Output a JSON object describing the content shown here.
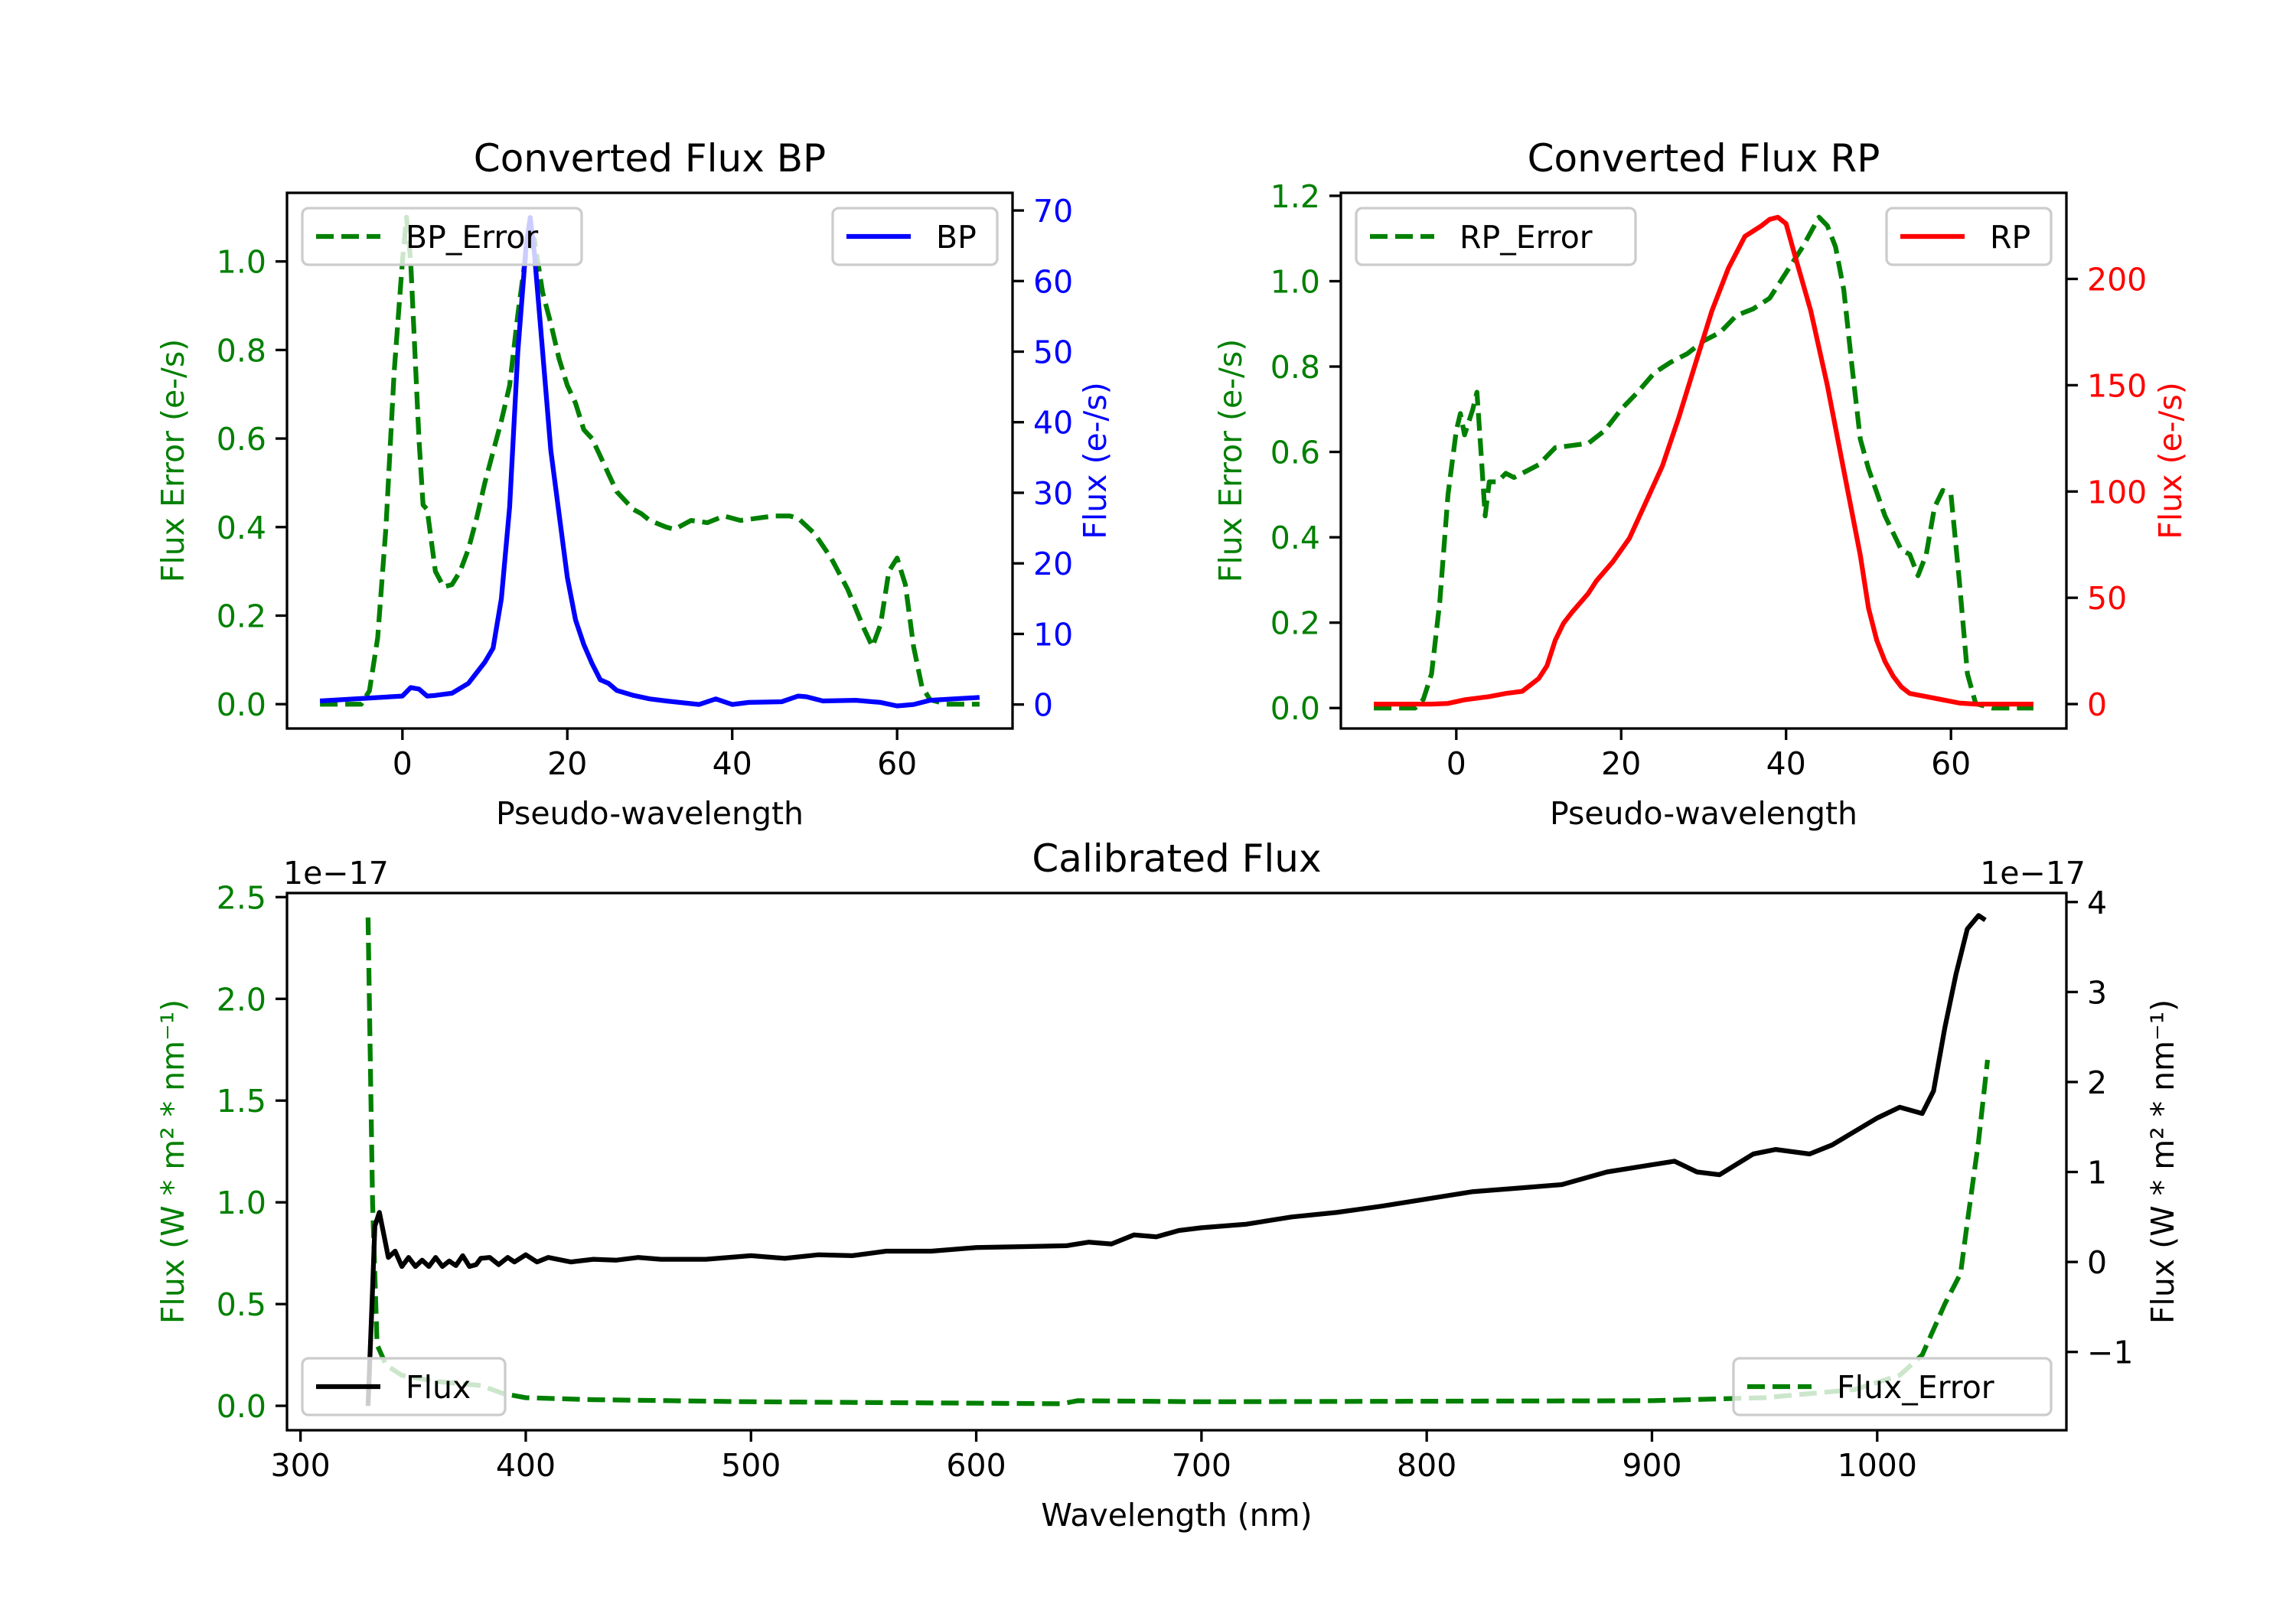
{
  "chart_data": [
    {
      "type": "line",
      "title": "Converted Flux BP",
      "xlabel": "Pseudo-wavelength",
      "ylabel_left": "Flux Error (e-/s)",
      "ylabel_right": "Flux (e-/s)",
      "xlim": [
        -14,
        74
      ],
      "ylim_left": [
        -0.055,
        1.155
      ],
      "ylim_right": [
        -3.4,
        72.5
      ],
      "xticks": [
        0,
        20,
        40,
        60
      ],
      "xtick_labels": [
        "0",
        "20",
        "40",
        "60"
      ],
      "yticks_left": [
        0.0,
        0.2,
        0.4,
        0.6,
        0.8,
        1.0
      ],
      "ytick_labels_left": [
        "0.0",
        "0.2",
        "0.4",
        "0.6",
        "0.8",
        "1.0"
      ],
      "yticks_right": [
        0,
        10,
        20,
        30,
        40,
        50,
        60,
        70
      ],
      "ytick_labels_right": [
        "0",
        "10",
        "20",
        "30",
        "40",
        "50",
        "60",
        "70"
      ],
      "left_color": "#008000",
      "right_color": "#0000ff",
      "legend_left": {
        "label": "BP_Error",
        "placement": "upper left"
      },
      "legend_right": {
        "label": "BP",
        "placement": "upper right"
      },
      "series": [
        {
          "name": "BP_Error",
          "axis": "left",
          "style": "dashed",
          "color": "#008000",
          "x": [
            -10,
            -5,
            -4,
            -3,
            -2,
            -1,
            0,
            0.5,
            1,
            1.5,
            2,
            2.5,
            3,
            4,
            5,
            6,
            7,
            8,
            9,
            10,
            11,
            12,
            13,
            14,
            15,
            16,
            17,
            18,
            19,
            20,
            21,
            22,
            23,
            24,
            25,
            26,
            27,
            28,
            29,
            30,
            32,
            33,
            35,
            37,
            39,
            41,
            43,
            45,
            47,
            48,
            50,
            52,
            54,
            56,
            57,
            58,
            59,
            60,
            61,
            62,
            63,
            64,
            66,
            70
          ],
          "y": [
            0,
            0,
            0.03,
            0.15,
            0.4,
            0.75,
            1.0,
            1.1,
            1.0,
            0.8,
            0.6,
            0.45,
            0.44,
            0.3,
            0.265,
            0.27,
            0.3,
            0.35,
            0.42,
            0.5,
            0.57,
            0.64,
            0.72,
            0.88,
            1.02,
            1.05,
            0.93,
            0.86,
            0.78,
            0.72,
            0.68,
            0.62,
            0.6,
            0.56,
            0.52,
            0.48,
            0.46,
            0.44,
            0.43,
            0.415,
            0.4,
            0.395,
            0.415,
            0.41,
            0.425,
            0.415,
            0.42,
            0.425,
            0.425,
            0.42,
            0.385,
            0.33,
            0.26,
            0.17,
            0.13,
            0.18,
            0.3,
            0.33,
            0.27,
            0.13,
            0.04,
            0.01,
            0,
            0
          ]
        },
        {
          "name": "BP",
          "axis": "right",
          "style": "solid",
          "color": "#0000ff",
          "x": [
            -10,
            0,
            1,
            2,
            3,
            4,
            6,
            8,
            10,
            11,
            12,
            13,
            14,
            15,
            15.5,
            16,
            17,
            18,
            19,
            20,
            21,
            22,
            23,
            24,
            25,
            26,
            28,
            30,
            32,
            36,
            38,
            40,
            42,
            46,
            47,
            48,
            49,
            51,
            55,
            58,
            60,
            62,
            64,
            70
          ],
          "y": [
            0.5,
            1.2,
            2.4,
            2.2,
            1.2,
            1.3,
            1.6,
            3,
            6,
            8,
            15,
            28,
            50,
            65,
            69,
            64,
            50,
            36,
            27,
            18,
            12,
            8.5,
            5.8,
            3.5,
            3,
            2,
            1.3,
            0.8,
            0.5,
            0,
            0.8,
            0,
            0.3,
            0.4,
            0.8,
            1.2,
            1.1,
            0.5,
            0.6,
            0.3,
            -0.2,
            0,
            0.6,
            1
          ]
        }
      ]
    },
    {
      "type": "line",
      "title": "Converted Flux RP",
      "xlabel": "Pseudo-wavelength",
      "ylabel_left": "Flux Error (e-/s)",
      "ylabel_right": "Flux (e-/s)",
      "xlim": [
        -14,
        74
      ],
      "ylim_left": [
        -0.048,
        1.207
      ],
      "ylim_right": [
        -11.5,
        240.5
      ],
      "xticks": [
        0,
        20,
        40,
        60
      ],
      "xtick_labels": [
        "0",
        "20",
        "40",
        "60"
      ],
      "yticks_left": [
        0.0,
        0.2,
        0.4,
        0.6,
        0.8,
        1.0,
        1.2
      ],
      "ytick_labels_left": [
        "0.0",
        "0.2",
        "0.4",
        "0.6",
        "0.8",
        "1.0",
        "1.2"
      ],
      "yticks_right": [
        0,
        50,
        100,
        150,
        200
      ],
      "ytick_labels_right": [
        "0",
        "50",
        "100",
        "150",
        "200"
      ],
      "left_color": "#008000",
      "right_color": "#ff0000",
      "legend_left": {
        "label": "RP_Error",
        "placement": "upper left"
      },
      "legend_right": {
        "label": "RP",
        "placement": "upper right"
      },
      "series": [
        {
          "name": "RP_Error",
          "axis": "left",
          "style": "dashed",
          "color": "#008000",
          "x": [
            -10,
            -5,
            -4,
            -3,
            -2,
            -1,
            0,
            0.5,
            1,
            2,
            2.5,
            3,
            3.5,
            4,
            5,
            6,
            7,
            8,
            10,
            12,
            14,
            16,
            18,
            20,
            22,
            24,
            26,
            28,
            30,
            32,
            34,
            36,
            38,
            40,
            42,
            44,
            45,
            46,
            47,
            48,
            49,
            50,
            52,
            54,
            55,
            56,
            57,
            58,
            59,
            60,
            61,
            62,
            63,
            65,
            70
          ],
          "y": [
            0,
            0,
            0.02,
            0.08,
            0.25,
            0.5,
            0.65,
            0.69,
            0.64,
            0.7,
            0.74,
            0.6,
            0.45,
            0.53,
            0.53,
            0.55,
            0.54,
            0.55,
            0.57,
            0.61,
            0.615,
            0.62,
            0.65,
            0.7,
            0.74,
            0.785,
            0.81,
            0.83,
            0.86,
            0.88,
            0.92,
            0.935,
            0.96,
            1.02,
            1.08,
            1.15,
            1.13,
            1.08,
            0.98,
            0.8,
            0.63,
            0.56,
            0.45,
            0.37,
            0.36,
            0.31,
            0.36,
            0.47,
            0.51,
            0.5,
            0.3,
            0.08,
            0.01,
            0,
            0
          ]
        },
        {
          "name": "RP",
          "axis": "right",
          "style": "solid",
          "color": "#ff0000",
          "x": [
            -10,
            -3,
            -1,
            1,
            3,
            4,
            6,
            8,
            10,
            11,
            12,
            13,
            14,
            16,
            17,
            19,
            21,
            23,
            25,
            27,
            29,
            31,
            33,
            35,
            37,
            38,
            39,
            40,
            41,
            43,
            45,
            47,
            49,
            50,
            51,
            52,
            53,
            54,
            55,
            57,
            59,
            61,
            63,
            70
          ],
          "y": [
            0,
            0,
            0.3,
            2,
            3,
            3.5,
            5,
            6,
            12,
            18,
            30,
            38,
            43,
            52,
            58,
            67,
            78,
            95,
            112,
            135,
            160,
            185,
            205,
            220,
            225,
            228,
            229,
            226,
            212,
            185,
            150,
            110,
            70,
            45,
            30,
            20,
            13,
            8,
            5,
            3.5,
            2,
            0.5,
            0,
            0
          ]
        }
      ]
    },
    {
      "type": "line",
      "title": "Calibrated Flux",
      "xlabel": "Wavelength (nm)",
      "ylabel_left": "Flux (W * m² * nm⁻¹)",
      "ylabel_right": "Flux (W * m² * nm⁻¹)",
      "offset_left": "1e−17",
      "offset_right": "1e−17",
      "xlim": [
        294,
        1084
      ],
      "ylim_left": [
        -0.12,
        2.52
      ],
      "ylim_right": [
        -1.87,
        4.1
      ],
      "xticks": [
        300,
        400,
        500,
        600,
        700,
        800,
        900,
        1000
      ],
      "xtick_labels": [
        "300",
        "400",
        "500",
        "600",
        "700",
        "800",
        "900",
        "1000"
      ],
      "yticks_left": [
        0.0,
        0.5,
        1.0,
        1.5,
        2.0,
        2.5
      ],
      "ytick_labels_left": [
        "0.0",
        "0.5",
        "1.0",
        "1.5",
        "2.0",
        "2.5"
      ],
      "yticks_right": [
        -1,
        0,
        1,
        2,
        3,
        4
      ],
      "ytick_labels_right": [
        "−1",
        "0",
        "1",
        "2",
        "3",
        "4"
      ],
      "left_color": "#008000",
      "right_color": "#000000",
      "legend_left": {
        "label": "Flux",
        "placement": "lower left"
      },
      "legend_right": {
        "label": "Flux_Error",
        "placement": "lower right"
      },
      "series": [
        {
          "name": "Flux_Error",
          "axis": "left",
          "style": "dashed",
          "color": "#008000",
          "x": [
            330,
            332,
            334,
            338,
            345,
            360,
            380,
            390,
            400,
            430,
            500,
            638,
            645,
            700,
            900,
            950,
            990,
            1010,
            1020,
            1030,
            1037,
            1040,
            1045,
            1049
          ],
          "y": [
            2.4,
            1.0,
            0.3,
            0.2,
            0.15,
            0.12,
            0.1,
            0.06,
            0.04,
            0.03,
            0.02,
            0.01,
            0.025,
            0.02,
            0.025,
            0.04,
            0.08,
            0.15,
            0.25,
            0.5,
            0.65,
            0.9,
            1.3,
            1.7
          ]
        },
        {
          "name": "Flux",
          "axis": "right",
          "style": "solid",
          "color": "#000000",
          "x": [
            330,
            332,
            333,
            335,
            337,
            339,
            342,
            345,
            348,
            351,
            354,
            357,
            360,
            363,
            366,
            369,
            372,
            375,
            378,
            380,
            384,
            388,
            392,
            395,
            400,
            405,
            410,
            420,
            430,
            440,
            450,
            460,
            480,
            500,
            515,
            530,
            545,
            560,
            580,
            600,
            620,
            640,
            650,
            660,
            670,
            680,
            690,
            700,
            720,
            740,
            760,
            780,
            800,
            820,
            840,
            860,
            880,
            900,
            910,
            920,
            930,
            945,
            955,
            970,
            980,
            1000,
            1010,
            1020,
            1025,
            1030,
            1035,
            1040,
            1045,
            1048
          ],
          "y": [
            -1.6,
            -0.3,
            0.4,
            0.55,
            0.3,
            0.05,
            0.12,
            -0.05,
            0.05,
            -0.05,
            0.02,
            -0.05,
            0.05,
            -0.05,
            0.01,
            -0.04,
            0.07,
            -0.05,
            -0.03,
            0.04,
            0.05,
            -0.03,
            0.05,
            0,
            0.08,
            0,
            0.05,
            0,
            0.03,
            0.02,
            0.05,
            0.03,
            0.03,
            0.07,
            0.04,
            0.08,
            0.07,
            0.12,
            0.12,
            0.16,
            0.17,
            0.18,
            0.22,
            0.2,
            0.3,
            0.28,
            0.35,
            0.38,
            0.42,
            0.5,
            0.55,
            0.62,
            0.7,
            0.78,
            0.82,
            0.86,
            1.0,
            1.08,
            1.12,
            1.0,
            0.97,
            1.2,
            1.25,
            1.2,
            1.3,
            1.6,
            1.72,
            1.65,
            1.9,
            2.6,
            3.2,
            3.7,
            3.85,
            3.8
          ]
        }
      ]
    }
  ]
}
